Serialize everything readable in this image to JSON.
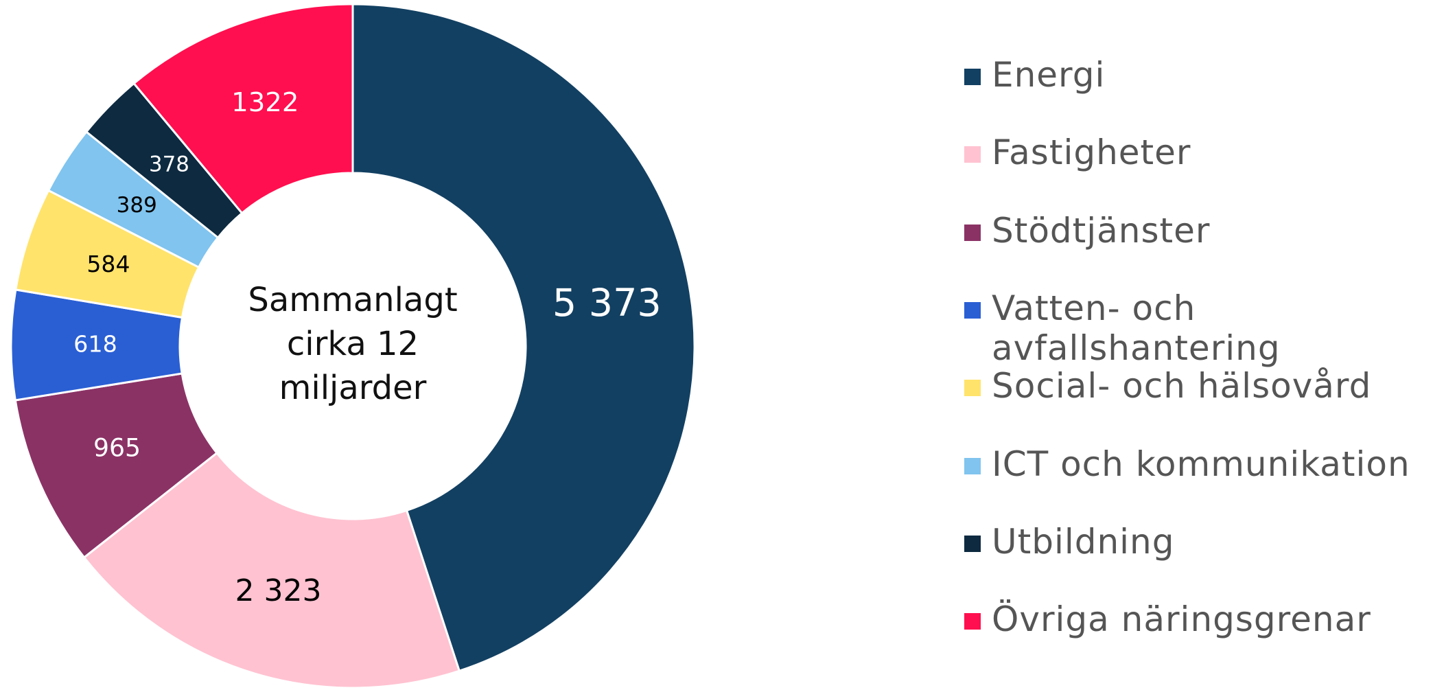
{
  "chart_data": {
    "type": "donut",
    "categories": [
      "Energi",
      "Fastigheter",
      "Stödtjänster",
      "Vatten- och avfallshantering",
      "Social- och hälsovård",
      "ICT och kommunikation",
      "Utbildning",
      "Övriga näringsgrenar"
    ],
    "values": [
      5373,
      2323,
      965,
      618,
      584,
      389,
      378,
      1322
    ],
    "value_labels": [
      "5 373",
      "2 323",
      "965",
      "618",
      "584",
      "389",
      "378",
      "1322"
    ],
    "colors": [
      "#124062",
      "#ffc2d1",
      "#8b3265",
      "#2a5fd4",
      "#ffe36b",
      "#80c4ef",
      "#0d2a40",
      "#ff0f4f"
    ],
    "label_colors": [
      "#ffffff",
      "#000000",
      "#ffffff",
      "#ffffff",
      "#000000",
      "#000000",
      "#ffffff",
      "#ffffff"
    ],
    "center_label": [
      "Sammanlagt",
      "cirka 12",
      "miljarder"
    ],
    "legend": "right"
  }
}
